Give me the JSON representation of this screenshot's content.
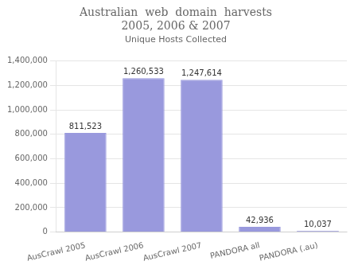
{
  "chart_data": {
    "type": "bar",
    "title": [
      "Australian  web  domain  harvests",
      "2005, 2006 & 2007"
    ],
    "subtitle": "Unique Hosts Collected",
    "categories": [
      "AusCrawl 2005",
      "AusCrawl 2006",
      "AusCrawl 2007",
      "PANDORA all",
      "PANDORA (.au)"
    ],
    "values": [
      811523,
      1260533,
      1247614,
      42936,
      10037
    ],
    "value_labels": [
      "811,523",
      "1,260,533",
      "1,247,614",
      "42,936",
      "10,037"
    ],
    "data_labels": true,
    "color": "#9999dd",
    "ylim": [
      0,
      1400000
    ],
    "yticks": [
      0,
      {
        "value": 200000,
        "label": "200,000"
      },
      {
        "value": 400000,
        "label": "400,000"
      },
      {
        "value": 600000,
        "label": "600,000"
      },
      {
        "value": 800000,
        "label": "800,000"
      },
      {
        "value": 1000000,
        "label": "1,000,000"
      },
      {
        "value": 1200000,
        "label": "1,200,000"
      },
      {
        "value": 1400000,
        "label": "1,400,000"
      }
    ],
    "grid": true
  }
}
